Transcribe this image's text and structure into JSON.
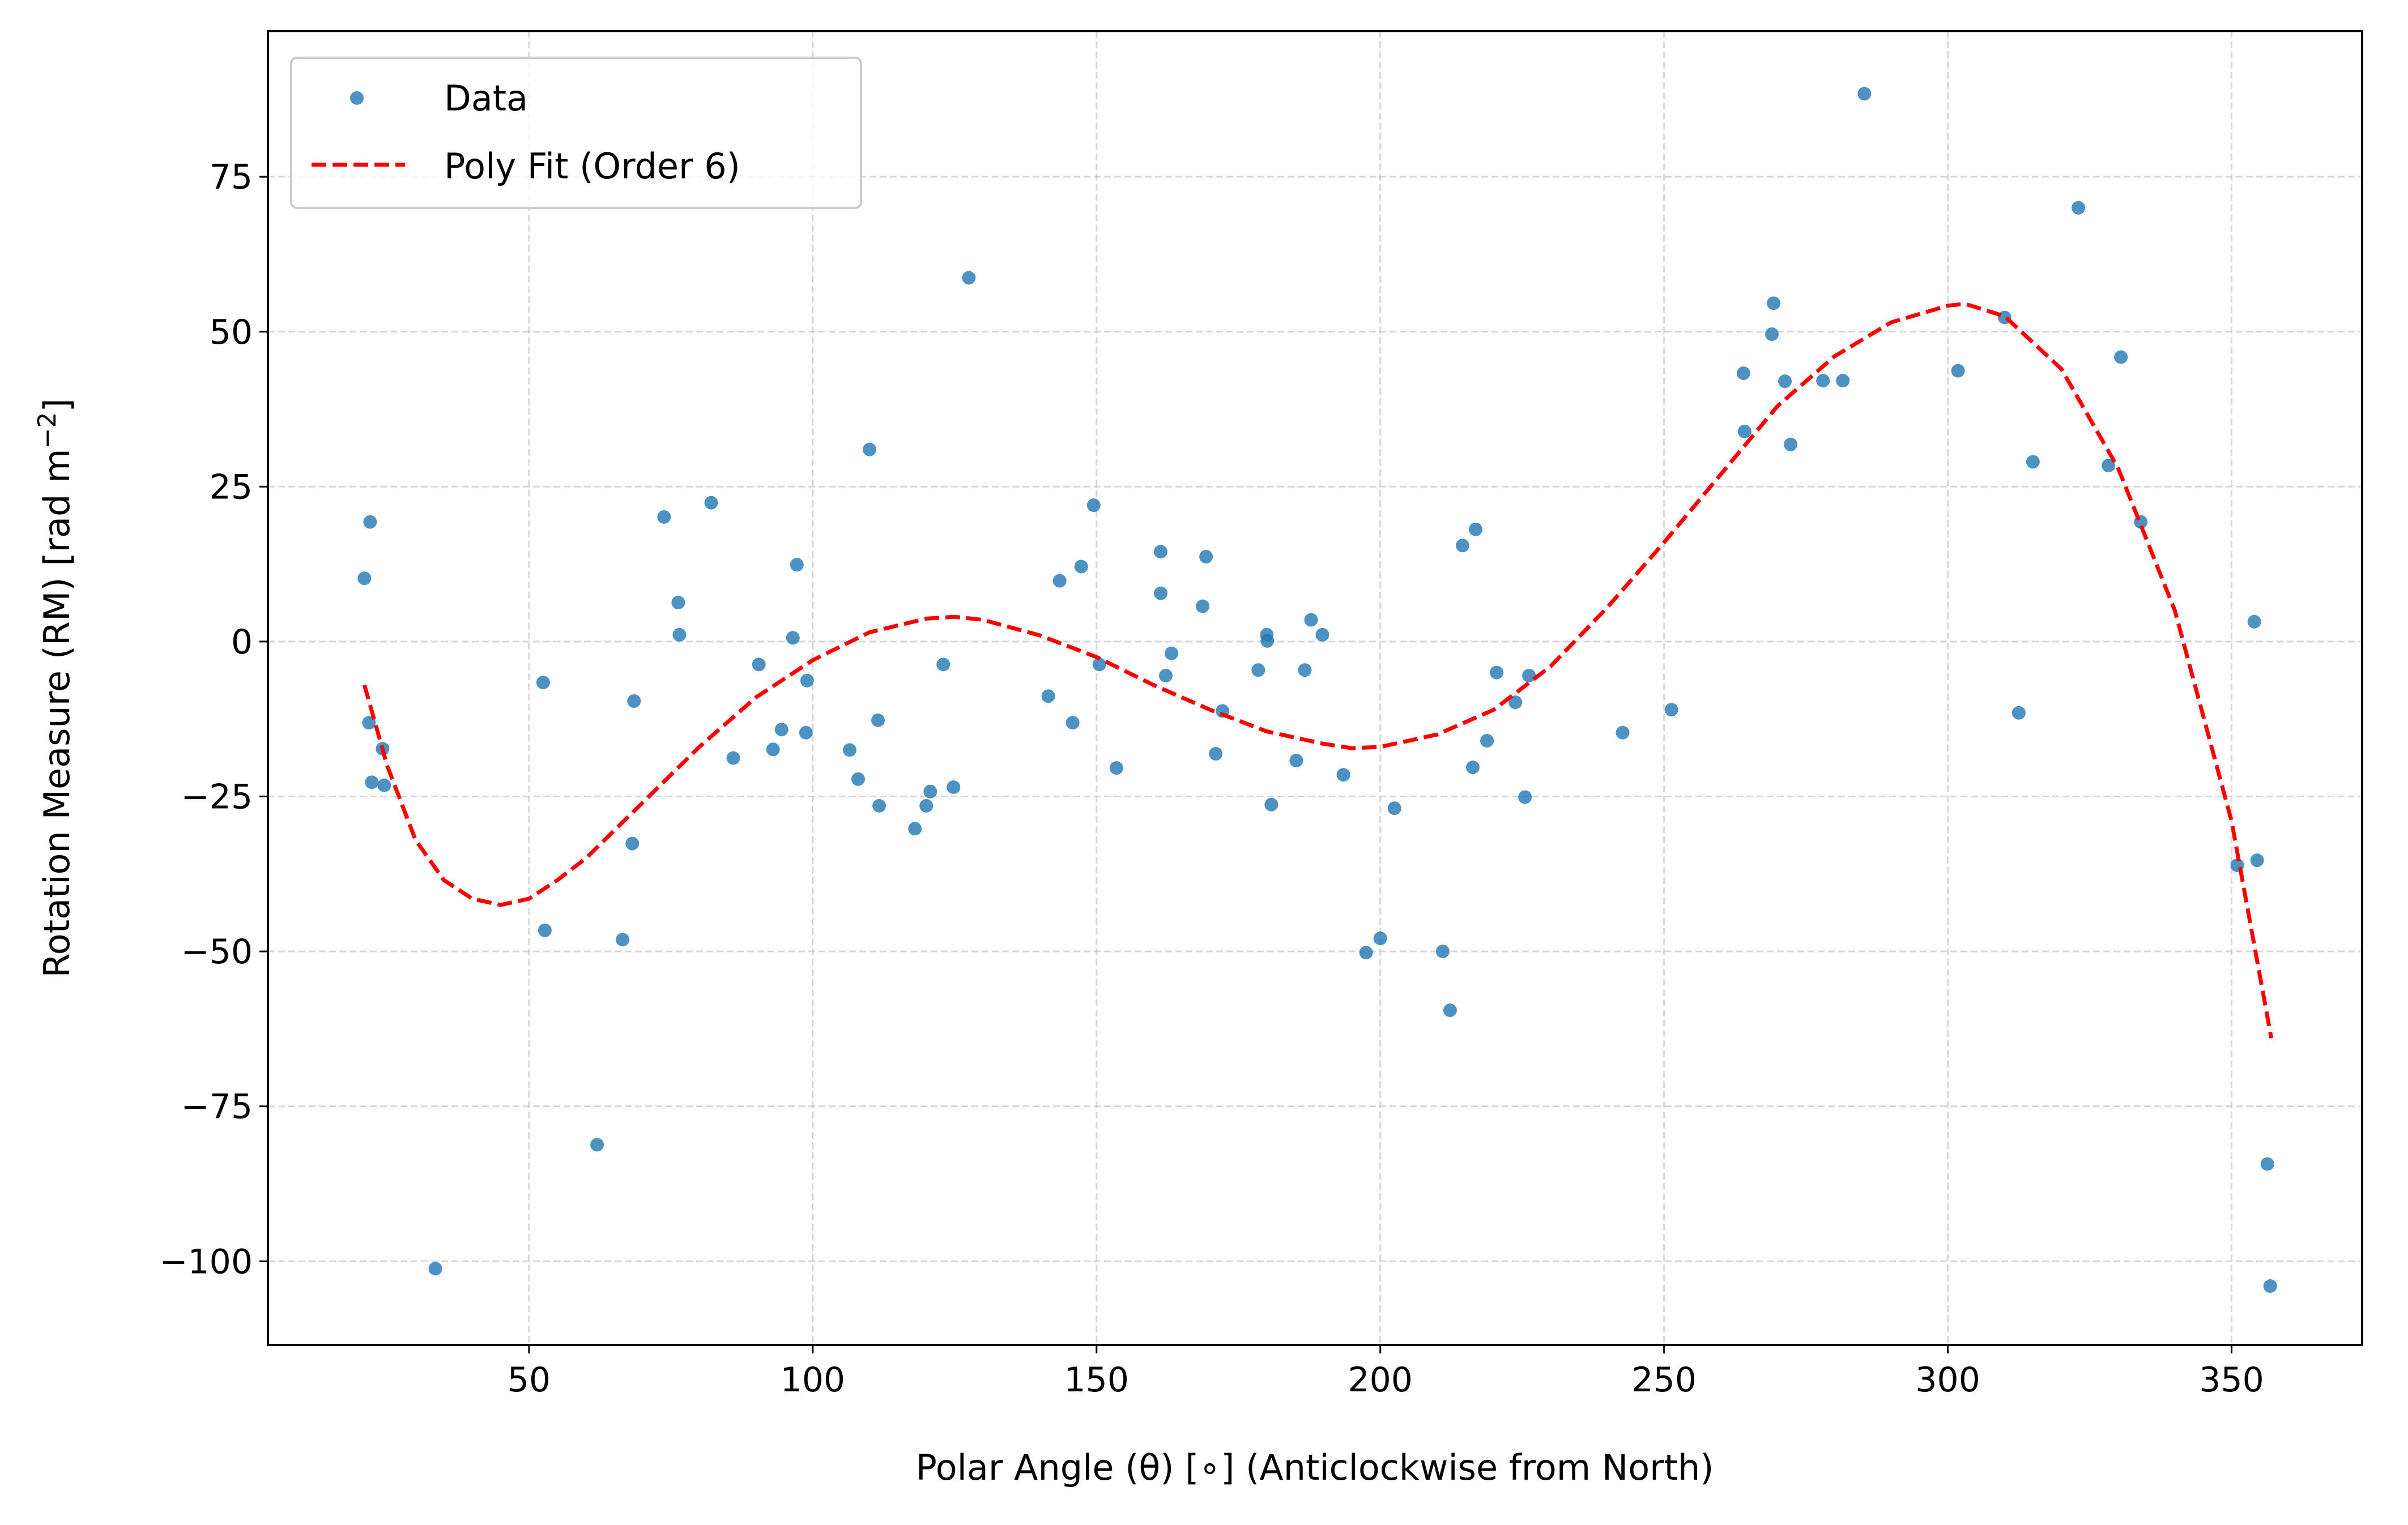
{
  "chart_data": {
    "type": "scatter",
    "title": "",
    "xlabel": "Polar Angle (θ) [∘] (Anticlockwise from North)",
    "ylabel_main": "Rotation Measure (RM) [rad m",
    "ylabel_sup": "−2",
    "ylabel_end": "]",
    "xlim": [
      4,
      373
    ],
    "ylim": [
      -113.5,
      98.5
    ],
    "xticks": [
      50,
      100,
      150,
      200,
      250,
      300,
      350
    ],
    "xtick_labels": [
      "50",
      "100",
      "150",
      "200",
      "250",
      "300",
      "350"
    ],
    "yticks": [
      75,
      50,
      25,
      0,
      -25,
      -50,
      -75,
      -100
    ],
    "ytick_labels": [
      "75",
      "50",
      "25",
      "0",
      "−25",
      "−50",
      "−75",
      "−100"
    ],
    "grid": true,
    "legend_position": "top-left",
    "series": [
      {
        "name": "Data",
        "kind": "scatter",
        "color": "#1f77b4",
        "points": [
          [
            21,
            10.2
          ],
          [
            21.8,
            -13.1
          ],
          [
            22,
            19.3
          ],
          [
            22.3,
            -22.7
          ],
          [
            24.2,
            -17.3
          ],
          [
            24.5,
            -23.2
          ],
          [
            33.5,
            -101.2
          ],
          [
            52.5,
            -6.6
          ],
          [
            52.8,
            -46.6
          ],
          [
            62,
            -81.2
          ],
          [
            66.5,
            -48.1
          ],
          [
            68.2,
            -32.6
          ],
          [
            68.5,
            -9.6
          ],
          [
            73.8,
            20.1
          ],
          [
            76.3,
            6.3
          ],
          [
            76.5,
            1.1
          ],
          [
            82.1,
            22.4
          ],
          [
            86,
            -18.8
          ],
          [
            90.5,
            -3.7
          ],
          [
            93,
            -17.4
          ],
          [
            94.5,
            -14.2
          ],
          [
            96.5,
            0.6
          ],
          [
            97.2,
            12.4
          ],
          [
            98.8,
            -14.7
          ],
          [
            99,
            -6.3
          ],
          [
            106.5,
            -17.5
          ],
          [
            108,
            -22.2
          ],
          [
            110,
            31
          ],
          [
            111.5,
            -12.7
          ],
          [
            111.7,
            -26.5
          ],
          [
            118,
            -30.2
          ],
          [
            120,
            -26.5
          ],
          [
            120.7,
            -24.2
          ],
          [
            123,
            -3.7
          ],
          [
            124.8,
            -23.5
          ],
          [
            127.5,
            58.7
          ],
          [
            141.5,
            -8.8
          ],
          [
            143.5,
            9.8
          ],
          [
            145.8,
            -13.1
          ],
          [
            147.3,
            12.1
          ],
          [
            149.5,
            22
          ],
          [
            150.5,
            -3.7
          ],
          [
            153.5,
            -20.4
          ],
          [
            161.3,
            14.5
          ],
          [
            161.3,
            7.8
          ],
          [
            162.2,
            -5.5
          ],
          [
            163.2,
            -1.9
          ],
          [
            168.7,
            5.7
          ],
          [
            169.3,
            13.7
          ],
          [
            171,
            -18.1
          ],
          [
            172.2,
            -11.2
          ],
          [
            178.5,
            -4.6
          ],
          [
            180,
            1.1
          ],
          [
            180.1,
            0.1
          ],
          [
            180.8,
            -26.3
          ],
          [
            185.2,
            -19.2
          ],
          [
            186.7,
            -4.6
          ],
          [
            187.8,
            3.5
          ],
          [
            189.8,
            1.1
          ],
          [
            193.5,
            -21.5
          ],
          [
            197.5,
            -50.2
          ],
          [
            200,
            -47.9
          ],
          [
            202.5,
            -26.9
          ],
          [
            211,
            -50
          ],
          [
            212.3,
            -59.5
          ],
          [
            214.5,
            15.5
          ],
          [
            216.3,
            -20.3
          ],
          [
            216.8,
            18.1
          ],
          [
            218.8,
            -16
          ],
          [
            220.5,
            -5
          ],
          [
            223.8,
            -9.8
          ],
          [
            225.5,
            -25.1
          ],
          [
            226.2,
            -5.5
          ],
          [
            242.7,
            -14.7
          ],
          [
            251.3,
            -11
          ],
          [
            264,
            43.3
          ],
          [
            264.2,
            33.9
          ],
          [
            269,
            49.6
          ],
          [
            269.3,
            54.6
          ],
          [
            271.3,
            42
          ],
          [
            272.3,
            31.8
          ],
          [
            278,
            42.1
          ],
          [
            281.5,
            42.1
          ],
          [
            285.3,
            88.4
          ],
          [
            301.8,
            43.7
          ],
          [
            310,
            52.3
          ],
          [
            312.5,
            -11.5
          ],
          [
            315,
            29
          ],
          [
            323,
            70
          ],
          [
            328.3,
            28.4
          ],
          [
            330.5,
            45.9
          ],
          [
            334,
            19.3
          ],
          [
            351,
            -36.1
          ],
          [
            354,
            3.2
          ],
          [
            354.5,
            -35.3
          ],
          [
            356.3,
            -84.3
          ],
          [
            356.8,
            -104
          ]
        ]
      },
      {
        "name": "Poly Fit (Order 6)",
        "kind": "line",
        "color": "#ff0000",
        "dash": "dashed",
        "points": [
          [
            21,
            -7
          ],
          [
            25,
            -20
          ],
          [
            30,
            -32
          ],
          [
            35,
            -38.5
          ],
          [
            40,
            -41.5
          ],
          [
            45,
            -42.5
          ],
          [
            50,
            -41.5
          ],
          [
            55,
            -38.5
          ],
          [
            60,
            -35
          ],
          [
            70,
            -26
          ],
          [
            80,
            -17
          ],
          [
            90,
            -9
          ],
          [
            100,
            -3
          ],
          [
            110,
            1.5
          ],
          [
            120,
            3.7
          ],
          [
            125,
            4
          ],
          [
            130,
            3.5
          ],
          [
            140,
            1
          ],
          [
            150,
            -2.5
          ],
          [
            160,
            -7
          ],
          [
            170,
            -11
          ],
          [
            180,
            -14.5
          ],
          [
            190,
            -16.5
          ],
          [
            195,
            -17.2
          ],
          [
            200,
            -17
          ],
          [
            210,
            -15
          ],
          [
            220,
            -11
          ],
          [
            230,
            -4
          ],
          [
            240,
            5.5
          ],
          [
            250,
            16
          ],
          [
            260,
            27
          ],
          [
            270,
            38
          ],
          [
            280,
            46
          ],
          [
            290,
            51.5
          ],
          [
            300,
            54.2
          ],
          [
            303,
            54.5
          ],
          [
            310,
            52.5
          ],
          [
            320,
            44
          ],
          [
            330,
            28
          ],
          [
            340,
            5
          ],
          [
            350,
            -29
          ],
          [
            357,
            -64
          ]
        ]
      }
    ]
  }
}
